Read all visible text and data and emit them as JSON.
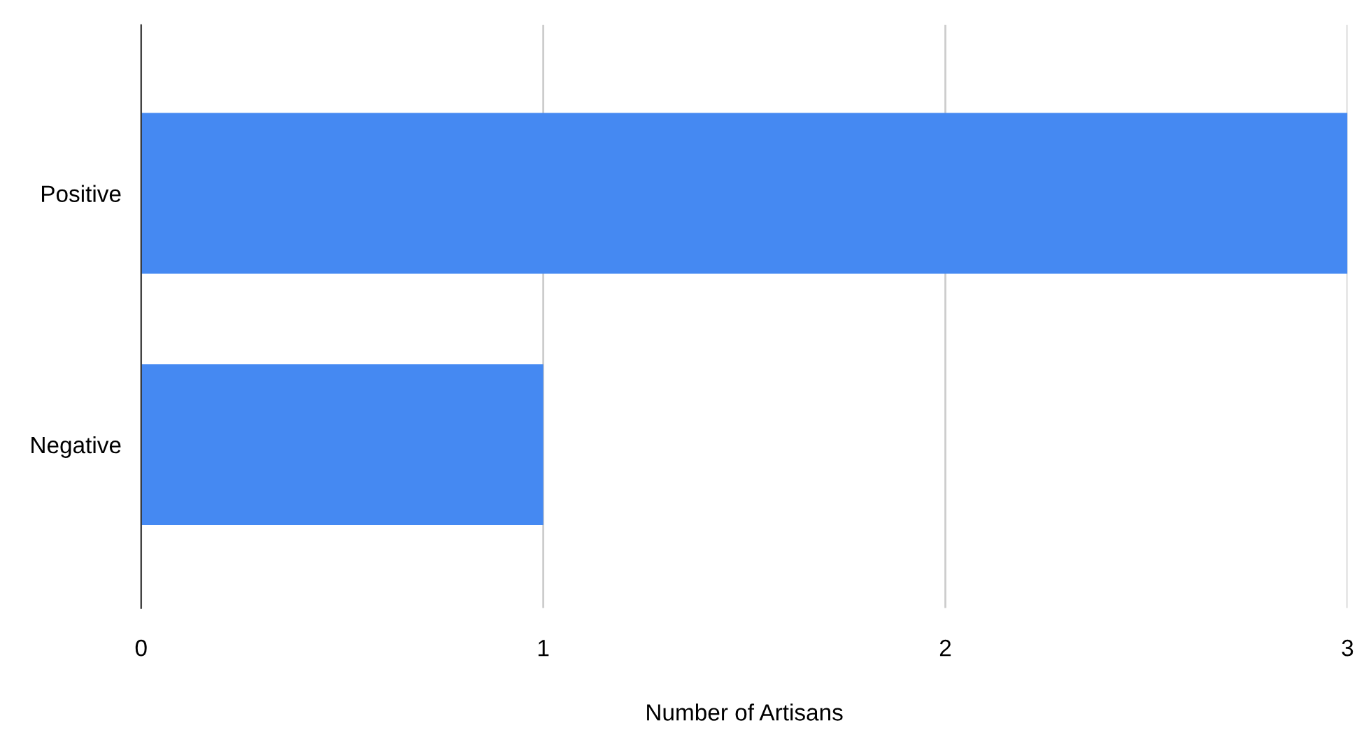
{
  "chart_data": {
    "type": "bar",
    "orientation": "horizontal",
    "xlabel": "Number of Artisans",
    "categories": [
      "Positive",
      "Negative"
    ],
    "values": [
      3,
      1
    ],
    "color": "#4589f2",
    "xlim": [
      0,
      3
    ],
    "xticks": [
      0,
      1,
      2,
      3
    ],
    "grid": "x",
    "legend": false
  }
}
